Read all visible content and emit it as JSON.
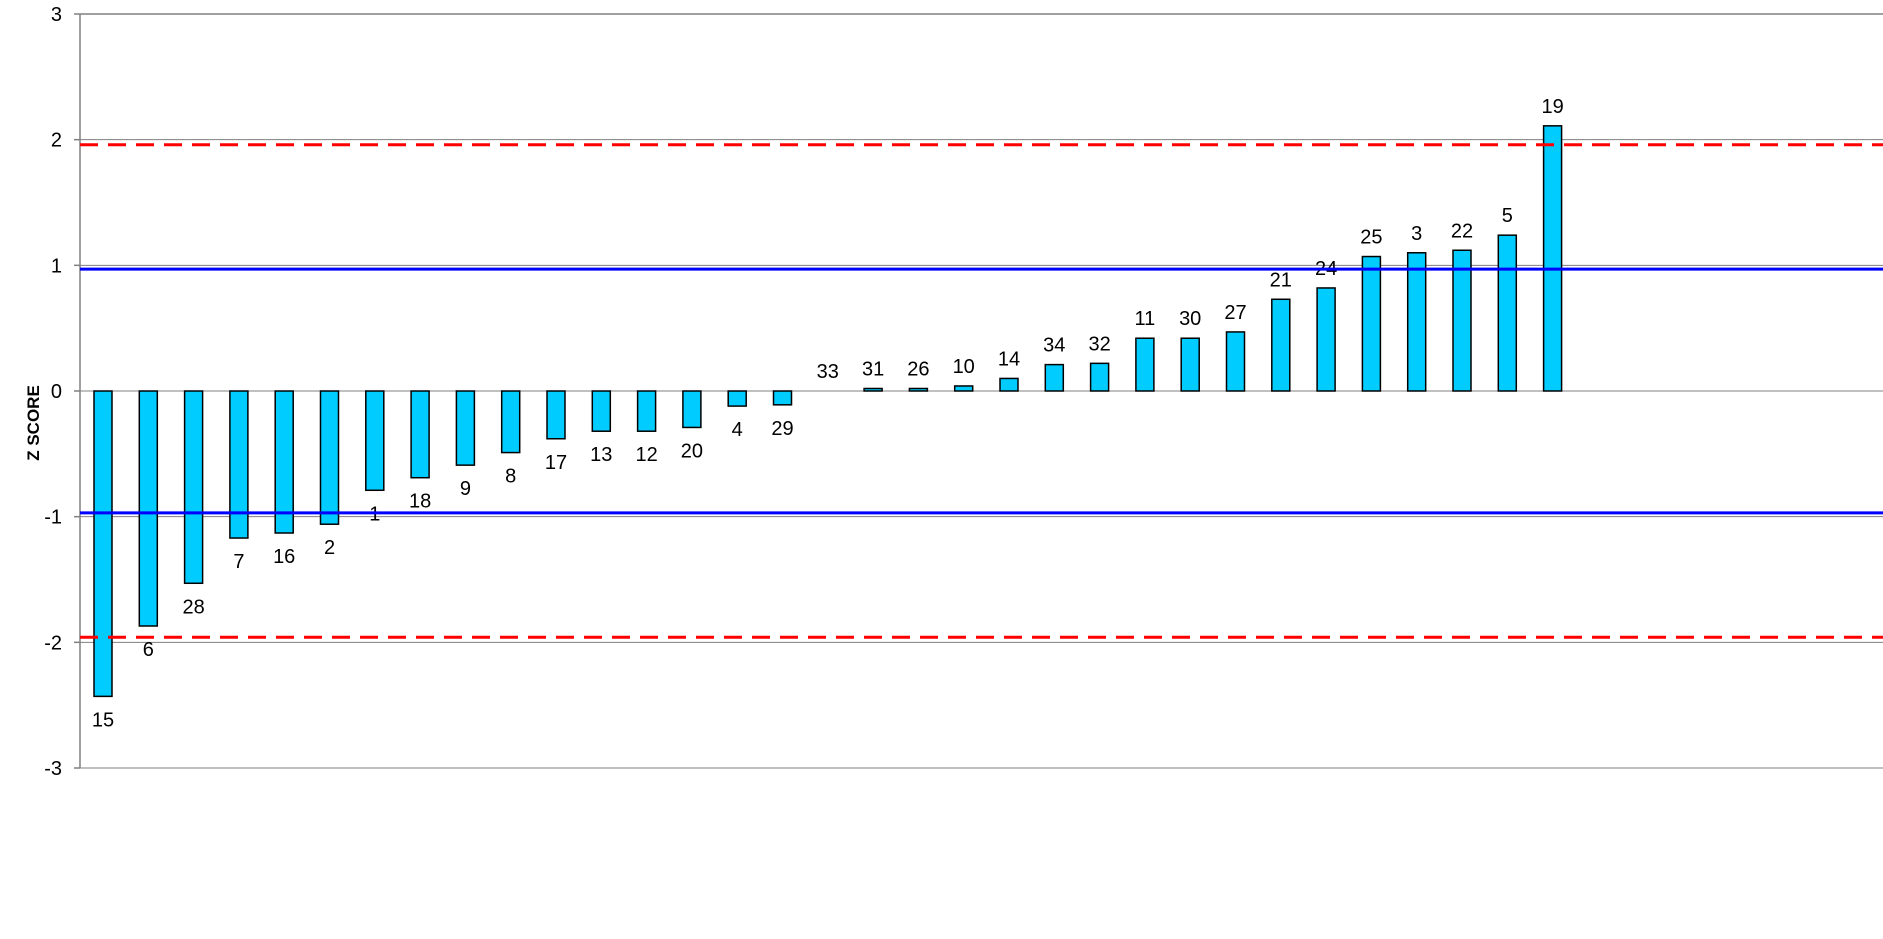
{
  "chart_data": {
    "type": "bar",
    "title": "",
    "xlabel": "",
    "ylabel": "Z SCORE",
    "ylim": [
      -3,
      3
    ],
    "yticks": [
      "3",
      "2",
      "1",
      "0",
      "-1",
      "-2",
      "-3"
    ],
    "grid": true,
    "categories": [
      "15",
      "6",
      "28",
      "7",
      "16",
      "2",
      "1",
      "18",
      "9",
      "8",
      "17",
      "13",
      "12",
      "20",
      "4",
      "29",
      "33",
      "31",
      "26",
      "10",
      "14",
      "34",
      "32",
      "11",
      "30",
      "27",
      "21",
      "24",
      "25",
      "3",
      "22",
      "5",
      "19"
    ],
    "values": [
      -2.43,
      -1.87,
      -1.53,
      -1.17,
      -1.13,
      -1.06,
      -0.79,
      -0.69,
      -0.59,
      -0.49,
      -0.38,
      -0.32,
      -0.32,
      -0.29,
      -0.12,
      -0.11,
      0.0,
      0.02,
      0.02,
      0.04,
      0.1,
      0.21,
      0.22,
      0.42,
      0.42,
      0.47,
      0.73,
      0.82,
      1.07,
      1.1,
      1.12,
      1.24,
      2.11
    ],
    "reference_lines": [
      {
        "value": 1.96,
        "color": "#ff0000",
        "style": "dashed"
      },
      {
        "value": -1.96,
        "color": "#ff0000",
        "style": "dashed"
      },
      {
        "value": 0.97,
        "color": "#0000ff",
        "style": "solid"
      },
      {
        "value": -0.97,
        "color": "#0000ff",
        "style": "solid"
      }
    ],
    "colors": {
      "bar_fill": "#00ccff",
      "bar_stroke": "#000000",
      "gridline": "#808080",
      "axis": "#808080"
    }
  }
}
